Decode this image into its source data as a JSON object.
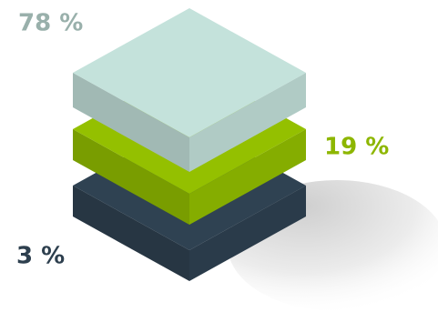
{
  "chart_data": {
    "type": "layers",
    "values": [
      78,
      19,
      3
    ],
    "value_labels": [
      "78 %",
      "19 %",
      "3 %"
    ],
    "colors": [
      "#c4e2db",
      "#94c000",
      "#2f4252"
    ]
  }
}
